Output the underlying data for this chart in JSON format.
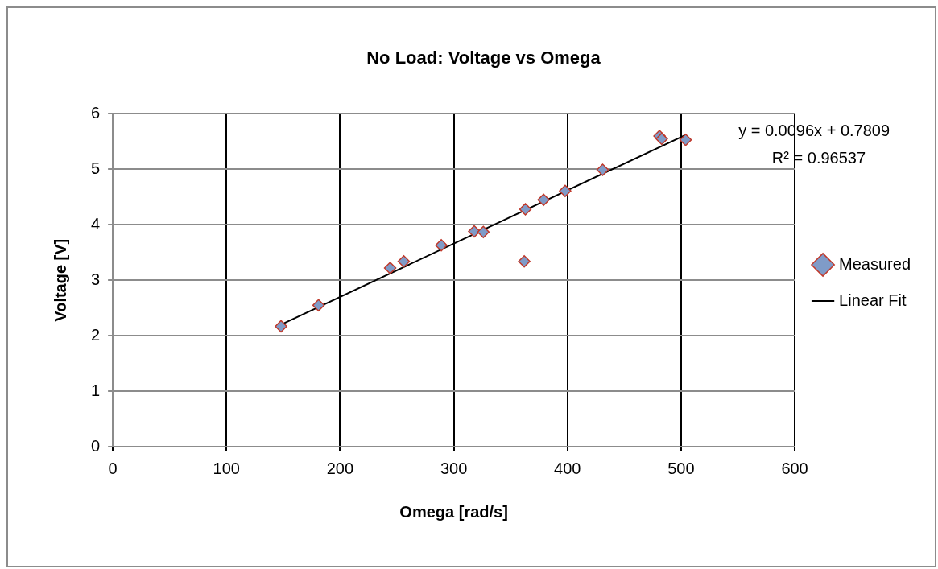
{
  "chart_data": {
    "type": "scatter",
    "title": "No Load: Voltage vs Omega",
    "xlabel": "Omega [rad/s]",
    "ylabel": "Voltage [V]",
    "xlim": [
      0,
      600
    ],
    "xticks": [
      0,
      100,
      200,
      300,
      400,
      500,
      600
    ],
    "ylim": [
      0,
      6
    ],
    "yticks": [
      0,
      1,
      2,
      3,
      4,
      5,
      6
    ],
    "grid": true,
    "legend": "right",
    "marker": "diamond",
    "annotations": [
      "y = 0.0096x + 0.7809",
      "R² = 0.96537"
    ],
    "series": [
      {
        "name": "Measured",
        "color": "#7f9bc8",
        "x": [
          148,
          181,
          244,
          256,
          289,
          318,
          326,
          362,
          363,
          379,
          398,
          431,
          481,
          483,
          504
        ],
        "values": [
          2.17,
          2.55,
          3.22,
          3.34,
          3.63,
          3.88,
          3.87,
          3.34,
          4.28,
          4.45,
          4.61,
          4.99,
          5.6,
          5.55,
          5.53
        ]
      },
      {
        "name": "Linear Fit",
        "type": "line",
        "color": "#000000",
        "marker": "none",
        "line_style": "solid",
        "x": [
          148,
          504
        ],
        "values": [
          2.2,
          5.62
        ]
      }
    ]
  }
}
